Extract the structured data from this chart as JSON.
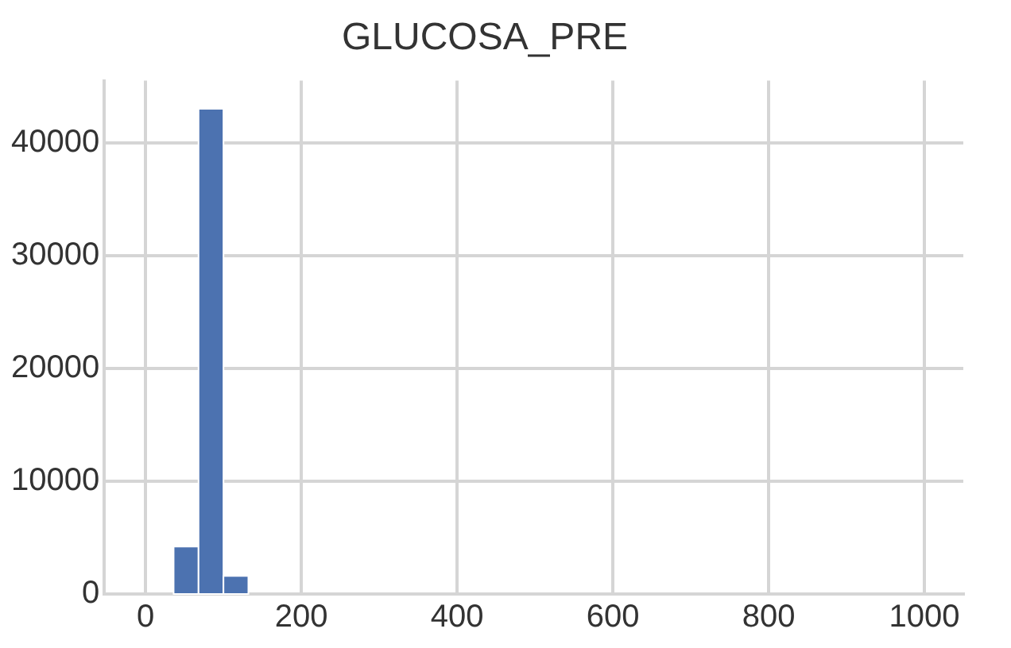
{
  "chart_data": {
    "type": "histogram",
    "title": "GLUCOSA_PRE",
    "bins": [
      36,
      68,
      100,
      132
    ],
    "values": [
      4200,
      43000,
      1600
    ],
    "color": "#4c72b0",
    "xlim": [
      -53,
      1050
    ],
    "xticks": [
      0,
      200,
      400,
      600,
      800,
      1000
    ],
    "ylim": [
      0,
      45500
    ],
    "yticks": [
      0,
      10000,
      20000,
      30000,
      40000
    ],
    "grid": true
  }
}
